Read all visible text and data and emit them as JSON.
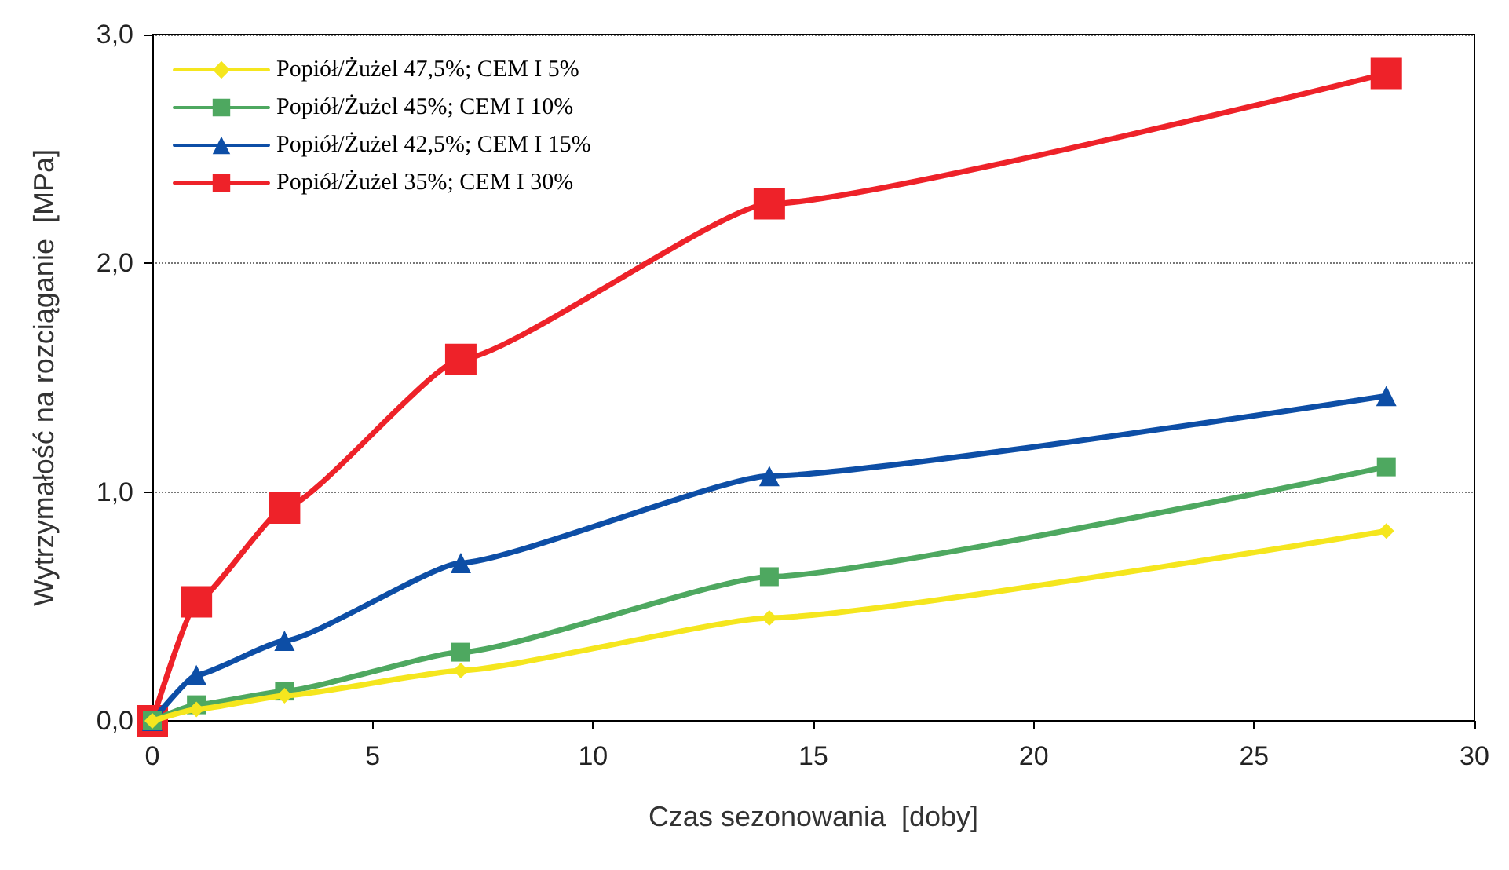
{
  "chart_data": {
    "type": "line",
    "xlabel": "Czas sezonowania  [doby]",
    "ylabel": "Wytrzymałość na rozciąganie  [MPa]",
    "x": [
      0,
      1,
      3,
      7,
      14,
      28
    ],
    "series": [
      {
        "name": "Popiół/Żużel 47,5%; CEM I 5%",
        "color": "#f5e61e",
        "marker": "diamond",
        "values": [
          0,
          0.05,
          0.11,
          0.22,
          0.45,
          0.83
        ]
      },
      {
        "name": "Popiół/Żużel 45%; CEM I 10%",
        "color": "#4ea860",
        "marker": "square",
        "values": [
          0,
          0.07,
          0.13,
          0.3,
          0.63,
          1.11
        ]
      },
      {
        "name": "Popiół/Żużel 42,5%; CEM I 15%",
        "color": "#0d4ea6",
        "marker": "triangle",
        "values": [
          0,
          0.2,
          0.35,
          0.69,
          1.07,
          1.42
        ]
      },
      {
        "name": "Popiół/Żużel 35%; CEM I 30%",
        "color": "#ee2229",
        "marker": "square",
        "values": [
          0,
          0.52,
          0.93,
          1.58,
          2.26,
          2.83
        ]
      }
    ],
    "xlim": [
      0,
      30
    ],
    "xticks": [
      0,
      5,
      10,
      15,
      20,
      25,
      30
    ],
    "ylim": [
      0,
      3
    ],
    "yticks": [
      {
        "value": 0,
        "label": "0,0"
      },
      {
        "value": 1,
        "label": "1,0"
      },
      {
        "value": 2,
        "label": "2,0"
      },
      {
        "value": 3,
        "label": "3,0"
      }
    ],
    "grid": "y",
    "legend": "top left",
    "line_style": "solid"
  }
}
